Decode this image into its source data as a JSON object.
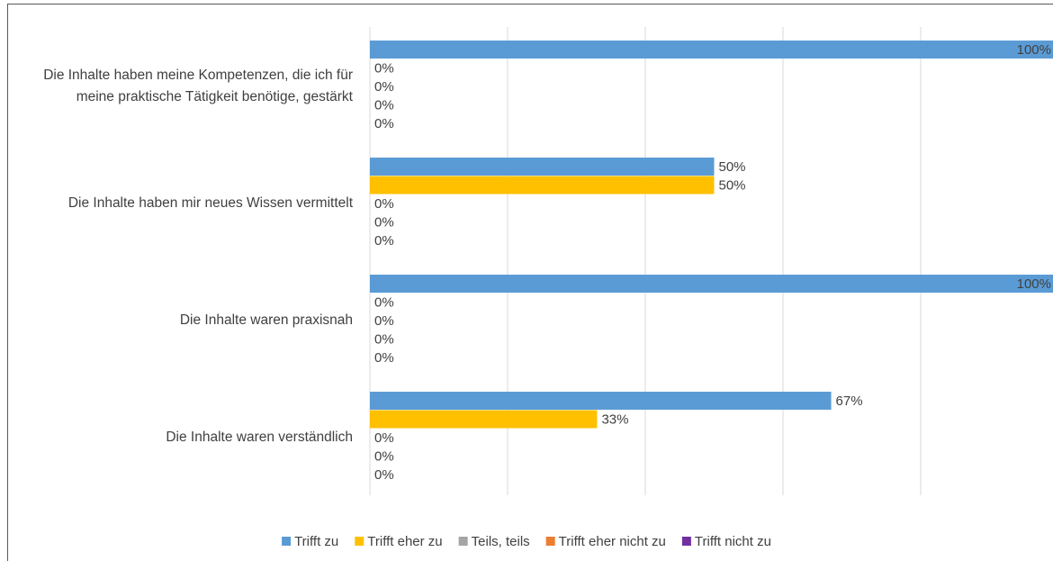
{
  "chart_data": {
    "type": "hbar",
    "categories": [
      "Die Inhalte haben meine Kompetenzen, die ich für meine praktische Tätigkeit benötige, gestärkt",
      "Die Inhalte haben mir neues Wissen vermittelt",
      "Die Inhalte waren praxisnah",
      "Die Inhalte waren verständlich"
    ],
    "series": [
      {
        "name": "Trifft zu",
        "color": "#5b9bd5",
        "values": [
          100,
          50,
          100,
          67
        ],
        "value_labels": [
          "100%",
          "50%",
          "100%",
          "67%"
        ]
      },
      {
        "name": "Trifft eher zu",
        "color": "#ffc000",
        "values": [
          0,
          50,
          0,
          33
        ],
        "value_labels": [
          "0%",
          "50%",
          "0%",
          "33%"
        ]
      },
      {
        "name": "Teils, teils",
        "color": "#a5a5a5",
        "values": [
          0,
          0,
          0,
          0
        ],
        "value_labels": [
          "0%",
          "0%",
          "0%",
          "0%"
        ]
      },
      {
        "name": "Trifft eher nicht zu",
        "color": "#ed7d31",
        "values": [
          0,
          0,
          0,
          0
        ],
        "value_labels": [
          "0%",
          "0%",
          "0%",
          "0%"
        ]
      },
      {
        "name": "Trifft nicht zu",
        "color": "#7030a0",
        "values": [
          0,
          0,
          0,
          0
        ],
        "value_labels": [
          "0%",
          "0%",
          "0%",
          "0%"
        ]
      }
    ],
    "xlim": [
      0,
      100
    ],
    "xticks": [
      0,
      20,
      40,
      60,
      80,
      100
    ],
    "grid": true,
    "legend": "bottom"
  }
}
